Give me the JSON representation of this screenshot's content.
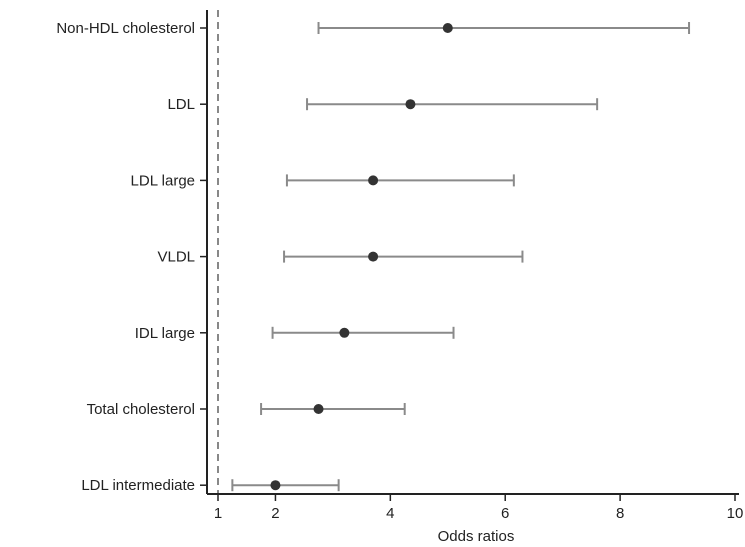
{
  "chart_data": {
    "type": "forest",
    "title": "",
    "xlabel": "Odds ratios",
    "ylabel": "",
    "xlim": [
      1,
      10
    ],
    "xticks": [
      1,
      2,
      4,
      6,
      8,
      10
    ],
    "reference_line": 1,
    "grid": false,
    "legend": "none",
    "colors": {
      "point": "#333333",
      "whisker": "#8a8a8a",
      "axis": "#222222",
      "reference": "#888888"
    },
    "categories": [
      "Non-HDL cholesterol",
      "LDL",
      "LDL large",
      "VLDL",
      "IDL large",
      "Total cholesterol",
      "LDL intermediate"
    ],
    "estimates": [
      5.0,
      4.35,
      3.7,
      3.7,
      3.2,
      2.75,
      2.0
    ],
    "ci_lower": [
      2.75,
      2.55,
      2.2,
      2.15,
      1.95,
      1.75,
      1.25
    ],
    "ci_upper": [
      9.2,
      7.6,
      6.15,
      6.3,
      5.1,
      4.25,
      3.1
    ]
  }
}
